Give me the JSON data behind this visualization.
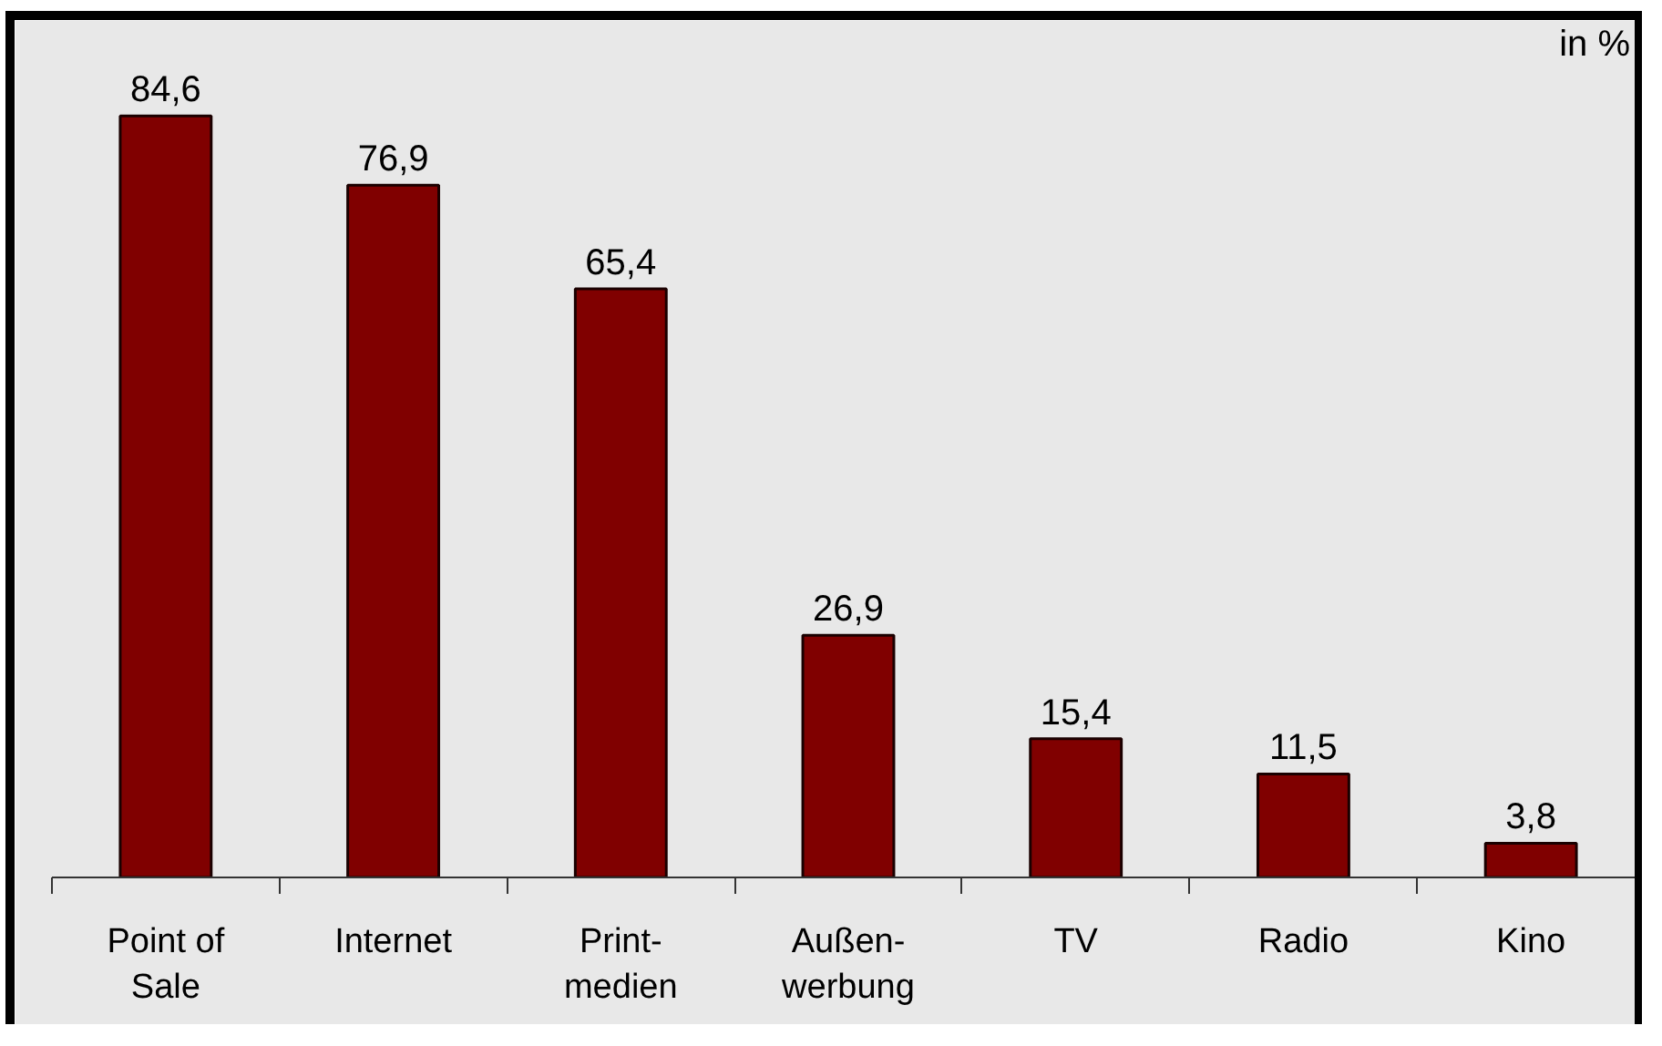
{
  "chart_data": {
    "type": "bar",
    "categories": [
      "Point of\nSale",
      "Internet",
      "Print-\nmedien",
      "Außen-\nwerbung",
      "TV",
      "Radio",
      "Kino"
    ],
    "values": [
      84.6,
      76.9,
      65.4,
      26.9,
      15.4,
      11.5,
      3.8
    ],
    "value_labels": [
      "84,6",
      "76,9",
      "65,4",
      "26,9",
      "15,4",
      "11,5",
      "3,8"
    ],
    "color": "#800000",
    "annotations": [
      "in %"
    ]
  }
}
